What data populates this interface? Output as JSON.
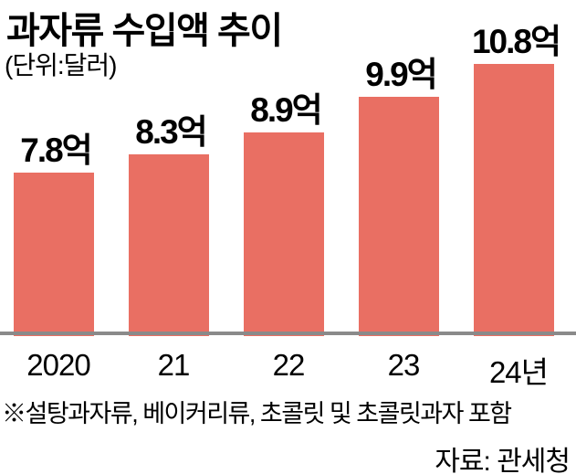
{
  "header": {
    "title": "과자류 수입액 추이",
    "unit_label": "(단위:달러)"
  },
  "footer": {
    "footnote": "※설탕과자류, 베이커리류, 초콜릿 및 초콜릿과자 포함",
    "source": "자료: 관세청"
  },
  "colors": {
    "bar": "#E96F63",
    "axis_line": "#8A8A8A",
    "text": "#000000",
    "background": "#FFFFFF"
  },
  "chart_data": {
    "type": "bar",
    "title": "과자류 수입액 추이",
    "unit": "억 달러",
    "categories": [
      "2020",
      "21",
      "22",
      "23",
      "24년"
    ],
    "values": [
      7.8,
      8.3,
      8.9,
      9.9,
      10.8
    ],
    "value_labels": [
      "7.8억",
      "8.3억",
      "8.9억",
      "9.9억",
      "10.8억"
    ],
    "ylim": [
      3.3,
      11.2
    ],
    "grid": false,
    "legend": "none",
    "bar_color": "#E96F63",
    "baseline_note": "truncated axis, baseline ≈ 3.3억"
  }
}
